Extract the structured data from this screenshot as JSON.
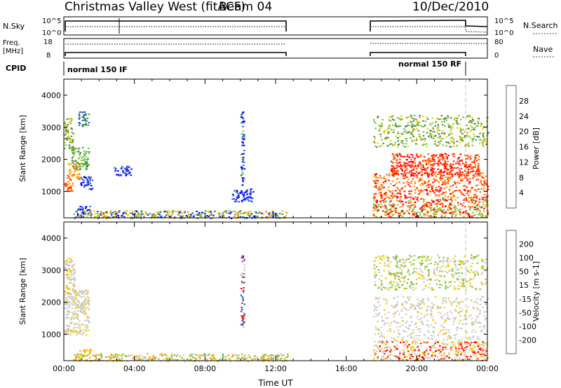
{
  "header": {
    "title": "Christmas Valley West (fitACF)",
    "beam": "Beam 04",
    "date": "10/Dec/2010"
  },
  "top_panels": {
    "nsky": {
      "left_label": "N.Sky",
      "ticks_right": [
        "10^5",
        "10^0"
      ],
      "ticks_left": [
        "10^5",
        "10^0"
      ],
      "right_label": "N.Search"
    },
    "freq": {
      "left_label_1": "Freq.",
      "left_label_2": "[MHz]",
      "ticks_left": [
        "18",
        "8"
      ],
      "ticks_right": [
        "80",
        "0"
      ],
      "right_label": "Nave"
    },
    "cpid": {
      "left_label": "CPID",
      "modes": [
        "normal 150 IF",
        "normal 150 RF"
      ]
    }
  },
  "colors": {
    "gray": "#c8c8c8",
    "power_scale": [
      "#0000ff",
      "#2255cc",
      "#3f8a4a",
      "#77c13c",
      "#f0c000",
      "#ff9200",
      "#ff5a00",
      "#ff0000"
    ],
    "velocity_scale": [
      "#ff0000",
      "#ff6a00",
      "#ff9c00",
      "#f0c800",
      "#c8c8c8",
      "#77c13c",
      "#3f8a4a",
      "#2255cc",
      "#0000ff"
    ]
  },
  "chart_data": [
    {
      "type": "heatmap",
      "name": "power",
      "ylabel": "Slant Range [km]",
      "yticks": [
        "1000",
        "2000",
        "3000",
        "4000"
      ],
      "ylim": [
        180,
        4500
      ],
      "xlim": [
        0,
        24
      ],
      "colorbar_label": "Power [dB]",
      "colorbar_ticks": [
        "4",
        "8",
        "12",
        "16",
        "20",
        "24",
        "28"
      ],
      "regions": [
        {
          "t0": 0.0,
          "t1": 0.5,
          "r0": 1000,
          "r1": 1400,
          "colors": [
            5,
            6,
            7
          ]
        },
        {
          "t0": 0.15,
          "t1": 0.9,
          "r0": 1400,
          "r1": 1900,
          "colors": [
            4,
            5,
            6
          ]
        },
        {
          "t0": 0.4,
          "t1": 1.4,
          "r0": 1700,
          "r1": 2400,
          "colors": [
            2,
            3
          ]
        },
        {
          "t0": 0.9,
          "t1": 1.6,
          "r0": 1050,
          "r1": 1500,
          "colors": [
            0,
            1
          ]
        },
        {
          "t0": 0.0,
          "t1": 0.5,
          "r0": 2300,
          "r1": 3300,
          "colors": [
            2,
            3,
            4
          ]
        },
        {
          "t0": 0.8,
          "t1": 1.4,
          "r0": 3000,
          "r1": 3500,
          "colors": [
            1,
            2
          ]
        },
        {
          "t0": 0.7,
          "t1": 1.5,
          "r0": 380,
          "r1": 560,
          "colors": [
            0,
            1
          ]
        },
        {
          "t0": 2.8,
          "t1": 3.8,
          "r0": 1500,
          "r1": 1800,
          "colors": [
            0,
            1
          ]
        },
        {
          "t0": 0.5,
          "t1": 12.7,
          "r0": 180,
          "r1": 420,
          "colors": [
            0,
            1,
            2,
            3,
            4,
            5
          ]
        },
        {
          "t0": 9.5,
          "t1": 10.7,
          "r0": 700,
          "r1": 1100,
          "colors": [
            0,
            1
          ]
        },
        {
          "t0": 10.0,
          "t1": 10.2,
          "r0": 1200,
          "r1": 3500,
          "colors": [
            0,
            1,
            3
          ]
        },
        {
          "t0": 17.5,
          "t1": 24.0,
          "r0": 800,
          "r1": 1600,
          "colors": [
            5,
            6,
            7
          ]
        },
        {
          "t0": 18.5,
          "t1": 23.5,
          "r0": 1500,
          "r1": 2200,
          "colors": [
            6,
            7
          ]
        },
        {
          "t0": 17.5,
          "t1": 24.0,
          "r0": 2400,
          "r1": 3400,
          "colors": [
            2,
            3,
            4
          ]
        },
        {
          "t0": 17.5,
          "t1": 24.0,
          "r0": 200,
          "r1": 800,
          "colors": [
            3,
            5,
            7
          ]
        }
      ]
    },
    {
      "type": "heatmap",
      "name": "velocity",
      "ylabel": "Slant Range [km]",
      "yticks": [
        "1000",
        "2000",
        "3000",
        "4000"
      ],
      "ylim": [
        180,
        4500
      ],
      "xlim": [
        0,
        24
      ],
      "xticks": [
        "00:00",
        "04:00",
        "08:00",
        "12:00",
        "16:00",
        "20:00",
        "00:00"
      ],
      "xlabel": "Time UT",
      "colorbar_label": "Velocity [m s-1]",
      "colorbar_ticks": [
        "-200",
        "-100",
        "-50",
        "-15",
        "15",
        "50",
        "100",
        "200"
      ],
      "regions": [
        {
          "t0": 0.0,
          "t1": 1.4,
          "r0": 1000,
          "r1": 2400,
          "colors": [
            4,
            4,
            4,
            3
          ]
        },
        {
          "t0": 0.0,
          "t1": 0.6,
          "r0": 2300,
          "r1": 3400,
          "colors": [
            4,
            4,
            3
          ]
        },
        {
          "t0": 0.7,
          "t1": 1.5,
          "r0": 380,
          "r1": 560,
          "colors": [
            2,
            3
          ]
        },
        {
          "t0": 0.5,
          "t1": 12.7,
          "r0": 180,
          "r1": 420,
          "colors": [
            3,
            2,
            4,
            5
          ]
        },
        {
          "t0": 10.0,
          "t1": 10.2,
          "r0": 1200,
          "r1": 3500,
          "colors": [
            0,
            7,
            4
          ]
        },
        {
          "t0": 17.5,
          "t1": 24.0,
          "r0": 800,
          "r1": 2200,
          "colors": [
            4,
            4,
            4,
            4,
            3
          ]
        },
        {
          "t0": 17.5,
          "t1": 24.0,
          "r0": 2400,
          "r1": 3500,
          "colors": [
            4,
            3,
            5
          ]
        },
        {
          "t0": 17.5,
          "t1": 24.0,
          "r0": 200,
          "r1": 800,
          "colors": [
            4,
            3,
            0
          ]
        }
      ]
    }
  ]
}
